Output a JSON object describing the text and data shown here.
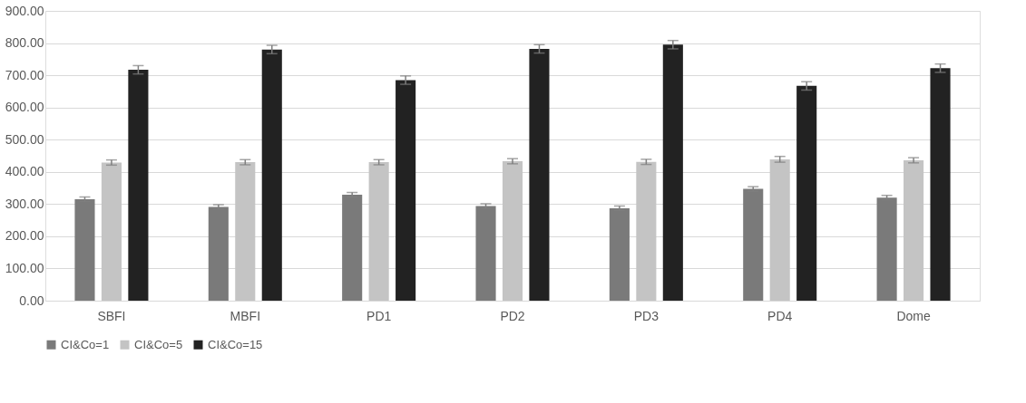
{
  "chart_data": {
    "type": "bar",
    "categories": [
      "SBFI",
      "MBFI",
      "PD1",
      "PD2",
      "PD3",
      "PD4",
      "Dome"
    ],
    "series": [
      {
        "name": "CI&Co=1",
        "color": "#7a7a7a",
        "values": [
          315,
          291,
          329,
          294,
          287,
          347,
          320
        ],
        "errors": [
          7,
          7,
          7,
          7,
          7,
          7,
          7
        ]
      },
      {
        "name": "CI&Co=5",
        "color": "#c4c4c4",
        "values": [
          429,
          430,
          430,
          433,
          431,
          439,
          436
        ],
        "errors": [
          8,
          8,
          8,
          8,
          8,
          9,
          8
        ]
      },
      {
        "name": "CI&Co=15",
        "color": "#222222",
        "values": [
          717,
          780,
          685,
          782,
          795,
          667,
          722
        ],
        "errors": [
          13,
          13,
          13,
          13,
          13,
          13,
          13
        ]
      }
    ],
    "ylim": [
      0,
      900
    ],
    "yticks": [
      {
        "value": 0,
        "label": "0.00"
      },
      {
        "value": 100,
        "label": "100.00"
      },
      {
        "value": 200,
        "label": "200.00"
      },
      {
        "value": 300,
        "label": "300.00"
      },
      {
        "value": 400,
        "label": "400.00"
      },
      {
        "value": 500,
        "label": "500.00"
      },
      {
        "value": 600,
        "label": "600.00"
      },
      {
        "value": 700,
        "label": "700.00"
      },
      {
        "value": 800,
        "label": "800.00"
      },
      {
        "value": 900,
        "label": "900.00"
      }
    ],
    "grid": "y",
    "legend": "bottom"
  }
}
